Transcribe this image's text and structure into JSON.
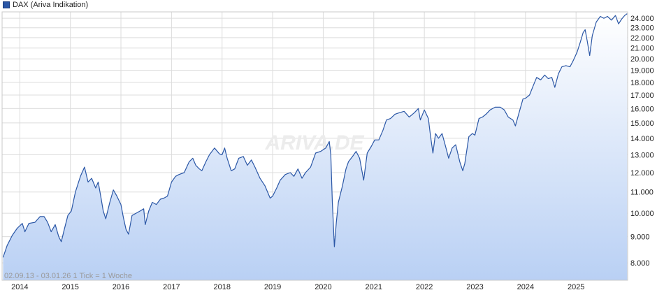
{
  "legend": {
    "label": "DAX (Ariva Indikation)",
    "color": "#2b57a6"
  },
  "info": {
    "range": "02.09.13 - 03.01.26",
    "tick": "1 Tick = 1 Woche"
  },
  "watermark": "ARIVA.DE",
  "colors": {
    "line": "#2b57a6",
    "fill_top": "#ffffff",
    "fill_bottom": "#b9d0f4",
    "grid": "#dcdcdc",
    "frame": "#c8c8c8"
  },
  "chart_data": {
    "type": "area",
    "ylog": true,
    "ylim": [
      7400,
      24700
    ],
    "xlim": [
      2013.65,
      2026.02
    ],
    "grid": true,
    "legend_position": "top-left",
    "yticks": [
      8000,
      9000,
      10000,
      11000,
      12000,
      13000,
      14000,
      15000,
      16000,
      17000,
      18000,
      19000,
      20000,
      21000,
      22000,
      23000,
      24000
    ],
    "ytick_labels": [
      "8.000",
      "9.000",
      "10.000",
      "11.000",
      "12.000",
      "13.000",
      "14.000",
      "15.000",
      "16.000",
      "17.000",
      "18.000",
      "19.000",
      "20.000",
      "21.000",
      "22.000",
      "23.000",
      "24.000"
    ],
    "xticks": [
      2014,
      2015,
      2016,
      2017,
      2018,
      2019,
      2020,
      2021,
      2022,
      2023,
      2024,
      2025
    ],
    "xtick_labels": [
      "2014",
      "2015",
      "2016",
      "2017",
      "2018",
      "2019",
      "2020",
      "2021",
      "2022",
      "2023",
      "2024",
      "2025"
    ],
    "series": [
      {
        "values": [
          [
            2013.67,
            8200
          ],
          [
            2013.75,
            8650
          ],
          [
            2013.85,
            9050
          ],
          [
            2013.95,
            9350
          ],
          [
            2014.05,
            9550
          ],
          [
            2014.1,
            9200
          ],
          [
            2014.18,
            9550
          ],
          [
            2014.3,
            9600
          ],
          [
            2014.4,
            9850
          ],
          [
            2014.48,
            9850
          ],
          [
            2014.55,
            9600
          ],
          [
            2014.62,
            9200
          ],
          [
            2014.7,
            9500
          ],
          [
            2014.77,
            9000
          ],
          [
            2014.82,
            8800
          ],
          [
            2014.88,
            9300
          ],
          [
            2014.95,
            9900
          ],
          [
            2015.02,
            10100
          ],
          [
            2015.1,
            11000
          ],
          [
            2015.2,
            11800
          ],
          [
            2015.28,
            12300
          ],
          [
            2015.35,
            11500
          ],
          [
            2015.42,
            11700
          ],
          [
            2015.5,
            11200
          ],
          [
            2015.55,
            11500
          ],
          [
            2015.6,
            10800
          ],
          [
            2015.65,
            10100
          ],
          [
            2015.7,
            9750
          ],
          [
            2015.78,
            10500
          ],
          [
            2015.85,
            11100
          ],
          [
            2015.92,
            10800
          ],
          [
            2016.0,
            10400
          ],
          [
            2016.05,
            9800
          ],
          [
            2016.1,
            9300
          ],
          [
            2016.15,
            9100
          ],
          [
            2016.22,
            9900
          ],
          [
            2016.3,
            10000
          ],
          [
            2016.38,
            10100
          ],
          [
            2016.45,
            10200
          ],
          [
            2016.48,
            9500
          ],
          [
            2016.55,
            10100
          ],
          [
            2016.62,
            10500
          ],
          [
            2016.7,
            10400
          ],
          [
            2016.78,
            10650
          ],
          [
            2016.85,
            10700
          ],
          [
            2016.92,
            10800
          ],
          [
            2017.0,
            11500
          ],
          [
            2017.08,
            11800
          ],
          [
            2017.15,
            11900
          ],
          [
            2017.25,
            12000
          ],
          [
            2017.35,
            12600
          ],
          [
            2017.42,
            12800
          ],
          [
            2017.48,
            12400
          ],
          [
            2017.55,
            12200
          ],
          [
            2017.6,
            12100
          ],
          [
            2017.68,
            12600
          ],
          [
            2017.75,
            13000
          ],
          [
            2017.85,
            13400
          ],
          [
            2017.95,
            13050
          ],
          [
            2018.0,
            13000
          ],
          [
            2018.05,
            13400
          ],
          [
            2018.1,
            12800
          ],
          [
            2018.18,
            12100
          ],
          [
            2018.25,
            12200
          ],
          [
            2018.33,
            12800
          ],
          [
            2018.42,
            12900
          ],
          [
            2018.5,
            12400
          ],
          [
            2018.58,
            12700
          ],
          [
            2018.65,
            12300
          ],
          [
            2018.75,
            11700
          ],
          [
            2018.85,
            11300
          ],
          [
            2018.95,
            10700
          ],
          [
            2019.0,
            10800
          ],
          [
            2019.08,
            11200
          ],
          [
            2019.15,
            11600
          ],
          [
            2019.25,
            11900
          ],
          [
            2019.35,
            12000
          ],
          [
            2019.42,
            11800
          ],
          [
            2019.5,
            12200
          ],
          [
            2019.58,
            11700
          ],
          [
            2019.65,
            12000
          ],
          [
            2019.75,
            12300
          ],
          [
            2019.85,
            13100
          ],
          [
            2019.95,
            13200
          ],
          [
            2020.05,
            13400
          ],
          [
            2020.12,
            13800
          ],
          [
            2020.15,
            13000
          ],
          [
            2020.18,
            10500
          ],
          [
            2020.22,
            8600
          ],
          [
            2020.26,
            9600
          ],
          [
            2020.3,
            10500
          ],
          [
            2020.38,
            11300
          ],
          [
            2020.45,
            12200
          ],
          [
            2020.5,
            12600
          ],
          [
            2020.58,
            12900
          ],
          [
            2020.65,
            13200
          ],
          [
            2020.72,
            12800
          ],
          [
            2020.8,
            11600
          ],
          [
            2020.87,
            13100
          ],
          [
            2020.95,
            13500
          ],
          [
            2021.02,
            13900
          ],
          [
            2021.1,
            13900
          ],
          [
            2021.18,
            14500
          ],
          [
            2021.25,
            15200
          ],
          [
            2021.33,
            15300
          ],
          [
            2021.42,
            15600
          ],
          [
            2021.5,
            15700
          ],
          [
            2021.6,
            15800
          ],
          [
            2021.7,
            15400
          ],
          [
            2021.8,
            15700
          ],
          [
            2021.88,
            16000
          ],
          [
            2021.92,
            15200
          ],
          [
            2022.0,
            15900
          ],
          [
            2022.08,
            15300
          ],
          [
            2022.12,
            14200
          ],
          [
            2022.17,
            13100
          ],
          [
            2022.22,
            14300
          ],
          [
            2022.28,
            14000
          ],
          [
            2022.35,
            14300
          ],
          [
            2022.42,
            13500
          ],
          [
            2022.48,
            12800
          ],
          [
            2022.55,
            13400
          ],
          [
            2022.62,
            13600
          ],
          [
            2022.7,
            12600
          ],
          [
            2022.76,
            12100
          ],
          [
            2022.8,
            12500
          ],
          [
            2022.88,
            14100
          ],
          [
            2022.95,
            14300
          ],
          [
            2023.0,
            14200
          ],
          [
            2023.08,
            15300
          ],
          [
            2023.15,
            15400
          ],
          [
            2023.22,
            15600
          ],
          [
            2023.3,
            15900
          ],
          [
            2023.4,
            16100
          ],
          [
            2023.5,
            16100
          ],
          [
            2023.58,
            15900
          ],
          [
            2023.66,
            15400
          ],
          [
            2023.75,
            15200
          ],
          [
            2023.8,
            14800
          ],
          [
            2023.88,
            15800
          ],
          [
            2023.95,
            16700
          ],
          [
            2024.0,
            16750
          ],
          [
            2024.08,
            17000
          ],
          [
            2024.15,
            17700
          ],
          [
            2024.22,
            18400
          ],
          [
            2024.3,
            18200
          ],
          [
            2024.38,
            18600
          ],
          [
            2024.45,
            18300
          ],
          [
            2024.52,
            18400
          ],
          [
            2024.58,
            17600
          ],
          [
            2024.65,
            18700
          ],
          [
            2024.72,
            19300
          ],
          [
            2024.8,
            19400
          ],
          [
            2024.88,
            19300
          ],
          [
            2024.95,
            19900
          ],
          [
            2025.02,
            20600
          ],
          [
            2025.08,
            21500
          ],
          [
            2025.14,
            22500
          ],
          [
            2025.18,
            22800
          ],
          [
            2025.22,
            21700
          ],
          [
            2025.27,
            20300
          ],
          [
            2025.32,
            22200
          ],
          [
            2025.4,
            23600
          ],
          [
            2025.48,
            24200
          ],
          [
            2025.55,
            24000
          ],
          [
            2025.62,
            24200
          ],
          [
            2025.7,
            23800
          ],
          [
            2025.78,
            24300
          ],
          [
            2025.84,
            23400
          ],
          [
            2025.9,
            23900
          ],
          [
            2025.96,
            24300
          ],
          [
            2026.01,
            24500
          ]
        ]
      }
    ]
  }
}
